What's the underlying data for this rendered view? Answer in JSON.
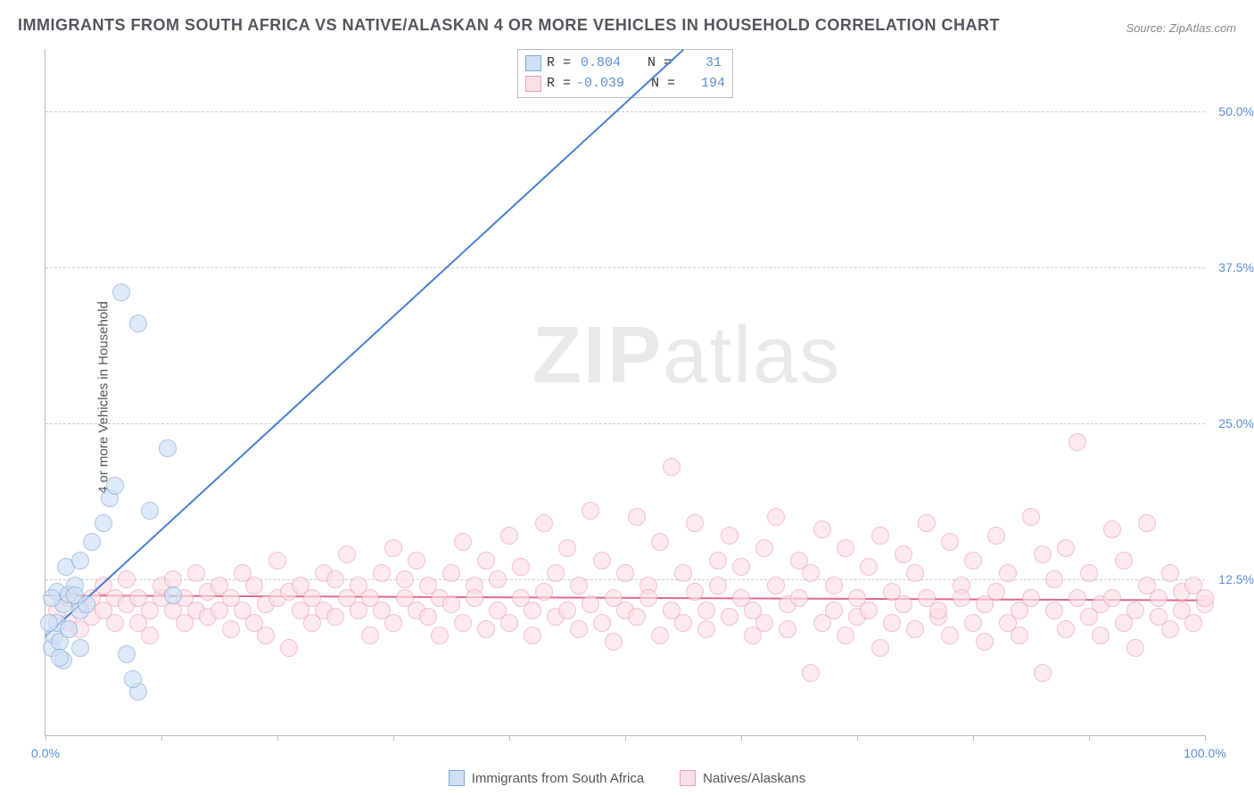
{
  "title": "IMMIGRANTS FROM SOUTH AFRICA VS NATIVE/ALASKAN 4 OR MORE VEHICLES IN HOUSEHOLD CORRELATION CHART",
  "source": "Source: ZipAtlas.com",
  "y_axis_label": "4 or more Vehicles in Household",
  "watermark_bold": "ZIP",
  "watermark_light": "atlas",
  "chart": {
    "type": "scatter",
    "xlim": [
      0,
      100
    ],
    "ylim": [
      0,
      55
    ],
    "x_ticks": [
      0,
      10,
      20,
      30,
      40,
      50,
      60,
      70,
      80,
      90,
      100
    ],
    "x_tick_labels_shown": {
      "0": "0.0%",
      "100": "100.0%"
    },
    "y_gridlines": [
      12.5,
      25.0,
      37.5,
      50.0
    ],
    "y_tick_labels": [
      "12.5%",
      "25.0%",
      "37.5%",
      "50.0%"
    ],
    "background_color": "#ffffff",
    "grid_color": "#cccccc",
    "axis_color": "#bbbbbb",
    "tick_label_color": "#5b8fd6",
    "marker_radius": 9,
    "marker_stroke_width": 1.5,
    "series": [
      {
        "name": "Immigrants from South Africa",
        "fill": "#cfe0f5",
        "stroke": "#7fa8d9",
        "fill_opacity": 0.65,
        "stats": {
          "R": "0.804",
          "N": "31"
        },
        "trend": {
          "x1": 0,
          "y1": 8.0,
          "x2": 55,
          "y2": 55.0,
          "color": "#4a7fd1",
          "width": 2
        },
        "points": [
          [
            0.5,
            7.0
          ],
          [
            0.8,
            8.0
          ],
          [
            1.0,
            9.0
          ],
          [
            1.2,
            7.5
          ],
          [
            1.5,
            10.5
          ],
          [
            1.0,
            11.5
          ],
          [
            1.5,
            6.0
          ],
          [
            2.0,
            8.5
          ],
          [
            2.0,
            11.3
          ],
          [
            2.5,
            12.0
          ],
          [
            0.5,
            11.0
          ],
          [
            3.0,
            10.0
          ],
          [
            1.8,
            13.5
          ],
          [
            2.5,
            11.2
          ],
          [
            3.0,
            14.0
          ],
          [
            3.5,
            10.5
          ],
          [
            4.0,
            15.5
          ],
          [
            5.0,
            17.0
          ],
          [
            5.5,
            19.0
          ],
          [
            6.0,
            20.0
          ],
          [
            7.0,
            6.5
          ],
          [
            8.0,
            3.5
          ],
          [
            7.5,
            4.5
          ],
          [
            9.0,
            18.0
          ],
          [
            6.5,
            35.5
          ],
          [
            10.5,
            23.0
          ],
          [
            8.0,
            33.0
          ],
          [
            11.0,
            11.2
          ],
          [
            3.0,
            7.0
          ],
          [
            1.2,
            6.2
          ],
          [
            0.3,
            9.0
          ]
        ]
      },
      {
        "name": "Natives/Alaskans",
        "fill": "#fbe0e6",
        "stroke": "#ec9fb3",
        "fill_opacity": 0.65,
        "stats": {
          "R": "-0.039",
          "N": "194"
        },
        "trend": {
          "x1": 0,
          "y1": 11.3,
          "x2": 100,
          "y2": 10.9,
          "color": "#e06a8a",
          "width": 2
        },
        "points": [
          [
            1,
            10
          ],
          [
            2,
            9
          ],
          [
            2,
            11
          ],
          [
            3,
            10.5
          ],
          [
            3,
            8.5
          ],
          [
            4,
            11
          ],
          [
            4,
            9.5
          ],
          [
            5,
            10
          ],
          [
            5,
            12
          ],
          [
            6,
            9
          ],
          [
            6,
            11
          ],
          [
            7,
            10.5
          ],
          [
            7,
            12.5
          ],
          [
            8,
            9
          ],
          [
            8,
            11
          ],
          [
            9,
            10
          ],
          [
            9,
            8
          ],
          [
            10,
            11
          ],
          [
            10,
            12
          ],
          [
            11,
            10
          ],
          [
            11,
            12.5
          ],
          [
            12,
            9
          ],
          [
            12,
            11
          ],
          [
            13,
            10
          ],
          [
            13,
            13
          ],
          [
            14,
            9.5
          ],
          [
            14,
            11.5
          ],
          [
            15,
            10
          ],
          [
            15,
            12
          ],
          [
            16,
            8.5
          ],
          [
            16,
            11
          ],
          [
            17,
            10
          ],
          [
            17,
            13
          ],
          [
            18,
            9
          ],
          [
            18,
            12
          ],
          [
            19,
            10.5
          ],
          [
            19,
            8
          ],
          [
            20,
            11
          ],
          [
            20,
            14
          ],
          [
            21,
            7
          ],
          [
            21,
            11.5
          ],
          [
            22,
            10
          ],
          [
            22,
            12
          ],
          [
            23,
            9
          ],
          [
            23,
            11
          ],
          [
            24,
            13
          ],
          [
            24,
            10
          ],
          [
            25,
            12.5
          ],
          [
            25,
            9.5
          ],
          [
            26,
            11
          ],
          [
            26,
            14.5
          ],
          [
            27,
            10
          ],
          [
            27,
            12
          ],
          [
            28,
            8
          ],
          [
            28,
            11
          ],
          [
            29,
            13
          ],
          [
            29,
            10
          ],
          [
            30,
            9
          ],
          [
            30,
            15
          ],
          [
            31,
            11
          ],
          [
            31,
            12.5
          ],
          [
            32,
            10
          ],
          [
            32,
            14
          ],
          [
            33,
            9.5
          ],
          [
            33,
            12
          ],
          [
            34,
            11
          ],
          [
            34,
            8
          ],
          [
            35,
            13
          ],
          [
            35,
            10.5
          ],
          [
            36,
            15.5
          ],
          [
            36,
            9
          ],
          [
            37,
            12
          ],
          [
            37,
            11
          ],
          [
            38,
            8.5
          ],
          [
            38,
            14
          ],
          [
            39,
            10
          ],
          [
            39,
            12.5
          ],
          [
            40,
            16
          ],
          [
            40,
            9
          ],
          [
            41,
            11
          ],
          [
            41,
            13.5
          ],
          [
            42,
            10
          ],
          [
            42,
            8
          ],
          [
            43,
            17
          ],
          [
            43,
            11.5
          ],
          [
            44,
            9.5
          ],
          [
            44,
            13
          ],
          [
            45,
            10
          ],
          [
            45,
            15
          ],
          [
            46,
            12
          ],
          [
            46,
            8.5
          ],
          [
            47,
            18
          ],
          [
            47,
            10.5
          ],
          [
            48,
            9
          ],
          [
            48,
            14
          ],
          [
            49,
            11
          ],
          [
            49,
            7.5
          ],
          [
            50,
            13
          ],
          [
            50,
            10
          ],
          [
            51,
            17.5
          ],
          [
            51,
            9.5
          ],
          [
            52,
            12
          ],
          [
            52,
            11
          ],
          [
            53,
            8
          ],
          [
            53,
            15.5
          ],
          [
            54,
            21.5
          ],
          [
            54,
            10
          ],
          [
            55,
            13
          ],
          [
            55,
            9
          ],
          [
            56,
            11.5
          ],
          [
            56,
            17
          ],
          [
            57,
            10
          ],
          [
            57,
            8.5
          ],
          [
            58,
            14
          ],
          [
            58,
            12
          ],
          [
            59,
            9.5
          ],
          [
            59,
            16
          ],
          [
            60,
            11
          ],
          [
            60,
            13.5
          ],
          [
            61,
            8
          ],
          [
            61,
            10
          ],
          [
            62,
            15
          ],
          [
            62,
            9
          ],
          [
            63,
            12
          ],
          [
            63,
            17.5
          ],
          [
            64,
            10.5
          ],
          [
            64,
            8.5
          ],
          [
            65,
            14
          ],
          [
            65,
            11
          ],
          [
            66,
            5
          ],
          [
            66,
            13
          ],
          [
            67,
            9
          ],
          [
            67,
            16.5
          ],
          [
            68,
            10
          ],
          [
            68,
            12
          ],
          [
            69,
            8
          ],
          [
            69,
            15
          ],
          [
            70,
            11
          ],
          [
            70,
            9.5
          ],
          [
            71,
            13.5
          ],
          [
            71,
            10
          ],
          [
            72,
            7
          ],
          [
            72,
            16
          ],
          [
            73,
            11.5
          ],
          [
            73,
            9
          ],
          [
            74,
            14.5
          ],
          [
            74,
            10.5
          ],
          [
            75,
            8.5
          ],
          [
            75,
            13
          ],
          [
            76,
            11
          ],
          [
            76,
            17
          ],
          [
            77,
            9.5
          ],
          [
            77,
            10
          ],
          [
            78,
            15.5
          ],
          [
            78,
            8
          ],
          [
            79,
            12
          ],
          [
            79,
            11
          ],
          [
            80,
            9
          ],
          [
            80,
            14
          ],
          [
            81,
            10.5
          ],
          [
            81,
            7.5
          ],
          [
            82,
            16
          ],
          [
            82,
            11.5
          ],
          [
            83,
            9
          ],
          [
            83,
            13
          ],
          [
            84,
            10
          ],
          [
            84,
            8
          ],
          [
            85,
            17.5
          ],
          [
            85,
            11
          ],
          [
            86,
            5
          ],
          [
            86,
            14.5
          ],
          [
            87,
            10
          ],
          [
            87,
            12.5
          ],
          [
            88,
            8.5
          ],
          [
            88,
            15
          ],
          [
            89,
            11
          ],
          [
            89,
            23.5
          ],
          [
            90,
            9.5
          ],
          [
            90,
            13
          ],
          [
            91,
            10.5
          ],
          [
            91,
            8
          ],
          [
            92,
            16.5
          ],
          [
            92,
            11
          ],
          [
            93,
            9
          ],
          [
            93,
            14
          ],
          [
            94,
            10
          ],
          [
            94,
            7
          ],
          [
            95,
            12
          ],
          [
            95,
            17
          ],
          [
            96,
            9.5
          ],
          [
            96,
            11
          ],
          [
            97,
            8.5
          ],
          [
            97,
            13
          ],
          [
            98,
            10
          ],
          [
            98,
            11.5
          ],
          [
            99,
            9
          ],
          [
            99,
            12
          ],
          [
            100,
            10.5
          ],
          [
            100,
            11
          ]
        ]
      }
    ]
  },
  "stats_box": {
    "rows": [
      {
        "swatch_fill": "#cfe0f5",
        "swatch_stroke": "#7fa8d9",
        "R_label": "R =",
        "R_val": "0.804",
        "N_label": "N =",
        "N_val": "31"
      },
      {
        "swatch_fill": "#fbe0e6",
        "swatch_stroke": "#ec9fb3",
        "R_label": "R =",
        "R_val": "-0.039",
        "N_label": "N =",
        "N_val": "194"
      }
    ]
  },
  "legend": {
    "items": [
      {
        "fill": "#cfe0f5",
        "stroke": "#7fa8d9",
        "label": "Immigrants from South Africa"
      },
      {
        "fill": "#fbe0e6",
        "stroke": "#ec9fb3",
        "label": "Natives/Alaskans"
      }
    ]
  }
}
